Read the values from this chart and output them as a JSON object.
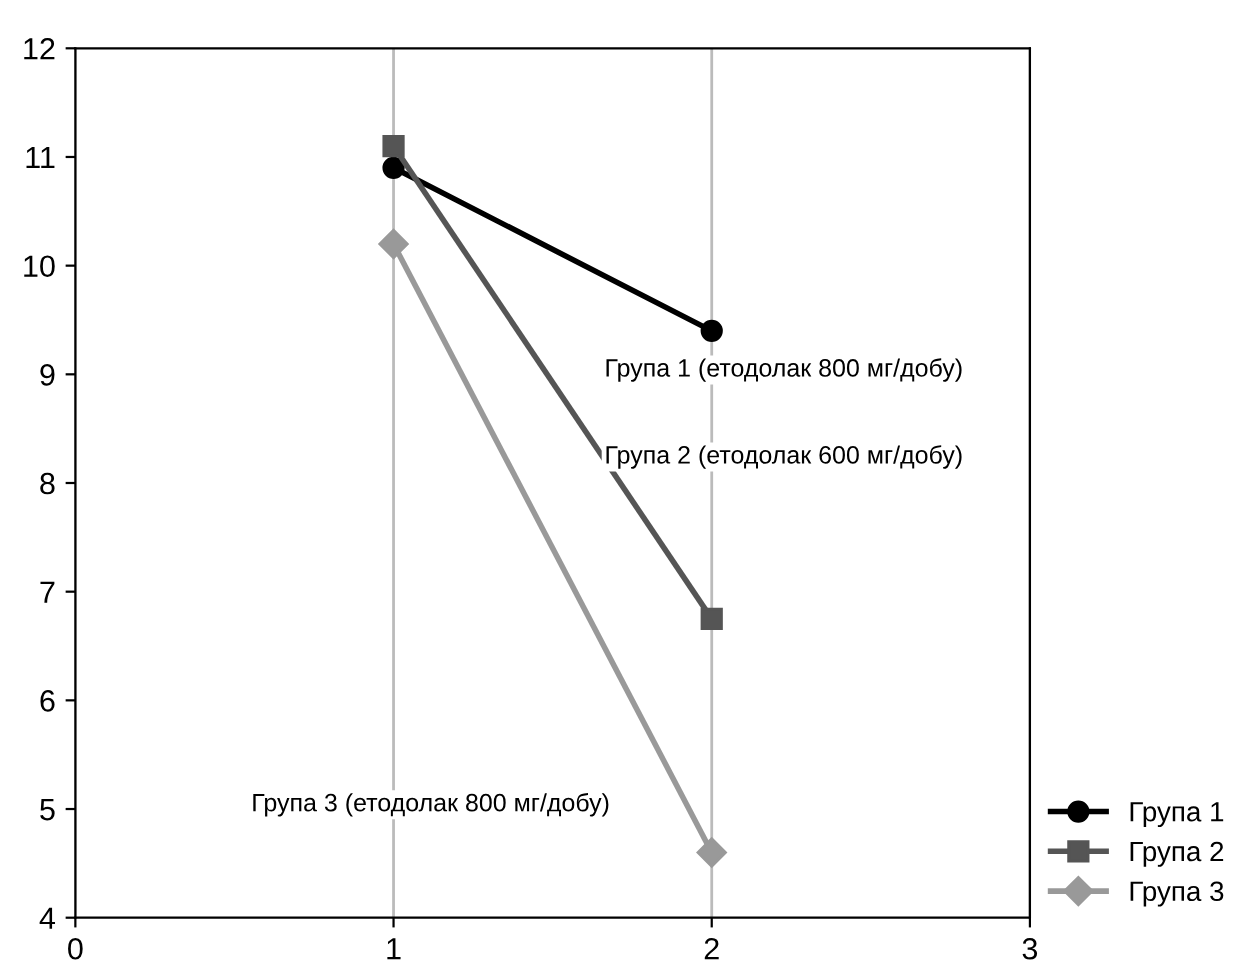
{
  "chart_data": {
    "type": "line",
    "x": [
      1,
      2
    ],
    "series": [
      {
        "name": "Група 1",
        "color": "#000000",
        "marker": "circle",
        "values": [
          10.9,
          9.4
        ]
      },
      {
        "name": "Група 2",
        "color": "#555555",
        "marker": "square",
        "values": [
          11.1,
          6.75
        ]
      },
      {
        "name": "Група 3",
        "color": "#999999",
        "marker": "diamond",
        "values": [
          10.2,
          4.6
        ]
      }
    ],
    "xlim": [
      0,
      3
    ],
    "xticks": [
      0,
      1,
      2,
      3
    ],
    "ylim": [
      4,
      12
    ],
    "yticks": [
      4,
      5,
      6,
      7,
      8,
      9,
      10,
      11,
      12
    ],
    "grid": "x",
    "legend": "bottom right",
    "annotations": [
      "Група 1 (етодолак 800 мг/добу)",
      "Група 2 (етодолак 600 мг/добу)",
      "Група 3 (етодолак 800 мг/добу)"
    ]
  }
}
